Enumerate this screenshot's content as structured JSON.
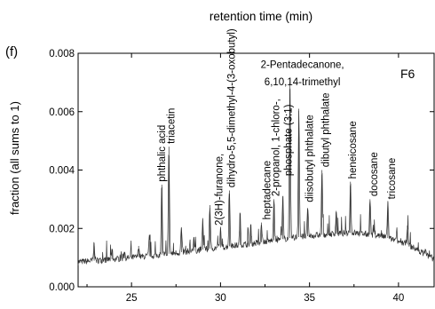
{
  "chart_data": {
    "type": "line",
    "panel_label": "(f)",
    "title": "retention time (min)",
    "xlabel": "",
    "ylabel": "fraction (all sums to 1)",
    "xlim": [
      22,
      42
    ],
    "ylim": [
      0,
      0.008
    ],
    "x_ticks": [
      25,
      30,
      35,
      40
    ],
    "y_ticks": [
      0.0,
      0.002,
      0.004,
      0.006,
      0.008
    ],
    "y_tick_labels": [
      "0.000",
      "0.002",
      "0.004",
      "0.006",
      "0.008"
    ],
    "series_label": "F6",
    "baseline": [
      [
        22.0,
        0.00085
      ],
      [
        24.0,
        0.00095
      ],
      [
        26.0,
        0.00105
      ],
      [
        28.0,
        0.0012
      ],
      [
        30.0,
        0.00135
      ],
      [
        32.0,
        0.0015
      ],
      [
        34.0,
        0.00168
      ],
      [
        36.0,
        0.0018
      ],
      [
        37.5,
        0.00185
      ],
      [
        39.0,
        0.00175
      ],
      [
        40.5,
        0.00145
      ],
      [
        42.0,
        0.00095
      ]
    ],
    "peaks": [
      [
        22.9,
        0.0015
      ],
      [
        23.9,
        0.0013
      ],
      [
        24.6,
        0.0012
      ],
      [
        25.4,
        0.0014
      ],
      [
        26.0,
        0.0017
      ],
      [
        26.7,
        0.0035
      ],
      [
        27.1,
        0.0048
      ],
      [
        27.8,
        0.002
      ],
      [
        28.5,
        0.0017
      ],
      [
        29.0,
        0.0023
      ],
      [
        29.4,
        0.0028
      ],
      [
        30.0,
        0.002
      ],
      [
        30.5,
        0.0033
      ],
      [
        31.1,
        0.0025
      ],
      [
        31.7,
        0.0021
      ],
      [
        32.3,
        0.0022
      ],
      [
        33.0,
        0.003
      ],
      [
        33.5,
        0.0031
      ],
      [
        33.9,
        0.007
      ],
      [
        34.4,
        0.0061
      ],
      [
        34.9,
        0.0027
      ],
      [
        35.7,
        0.004
      ],
      [
        36.5,
        0.0026
      ],
      [
        37.3,
        0.0036
      ],
      [
        38.4,
        0.003
      ],
      [
        39.4,
        0.0029
      ],
      [
        40.5,
        0.0021
      ],
      [
        41.5,
        0.0013
      ]
    ],
    "annotations": [
      {
        "text": "phthalic acid",
        "x": 26.7,
        "y": 0.0036,
        "orientation": "vertical"
      },
      {
        "text": "triacetin",
        "x": 27.2,
        "y": 0.0049,
        "orientation": "vertical"
      },
      {
        "text": "2(3H)-furanone,",
        "x": 29.9,
        "y": 0.0021,
        "orientation": "vertical"
      },
      {
        "text": "dihydro-5,5-dimethyl-4-(3-oxobutyl)",
        "x": 30.6,
        "y": 0.0034,
        "orientation": "vertical"
      },
      {
        "text": "heptadecane",
        "x": 32.6,
        "y": 0.0023,
        "orientation": "vertical"
      },
      {
        "text": "2-propanol, 1-chloro-,",
        "x": 33.1,
        "y": 0.0031,
        "orientation": "vertical"
      },
      {
        "text": "phosphate (3:1)",
        "x": 33.8,
        "y": 0.0038,
        "orientation": "vertical"
      },
      {
        "text": "diisobutyl phthalate",
        "x": 35.0,
        "y": 0.0029,
        "orientation": "vertical"
      },
      {
        "text": "dibutyl phthalate",
        "x": 35.9,
        "y": 0.0041,
        "orientation": "vertical"
      },
      {
        "text": "heneicosane",
        "x": 37.4,
        "y": 0.0037,
        "orientation": "vertical"
      },
      {
        "text": "docosane",
        "x": 38.6,
        "y": 0.0031,
        "orientation": "vertical"
      },
      {
        "text": "tricosane",
        "x": 39.6,
        "y": 0.003,
        "orientation": "vertical"
      },
      {
        "text": "2-Pentadecanone,",
        "x": 34.6,
        "y": 0.0075,
        "orientation": "horizontal"
      },
      {
        "text": "6,10,14-trimethyl",
        "x": 34.6,
        "y": 0.0069,
        "orientation": "horizontal"
      }
    ]
  }
}
